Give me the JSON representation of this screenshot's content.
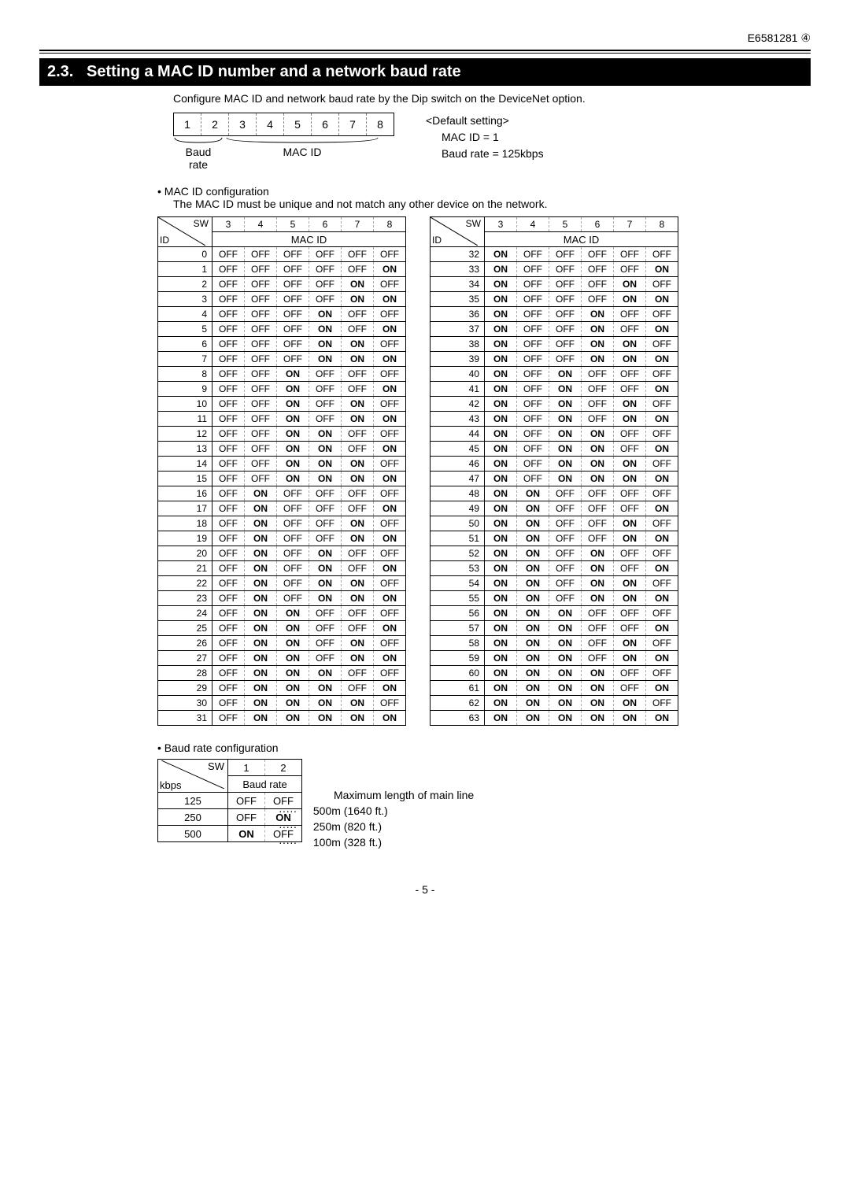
{
  "doc_code": "E6581281 ④",
  "section_number": "2.3.",
  "section_title": "Setting a MAC ID number and a network baud rate",
  "intro": "Configure MAC ID and network baud rate by the Dip switch on the DeviceNet option.",
  "dip": {
    "cells": [
      "1",
      "2",
      "3",
      "4",
      "5",
      "6",
      "7",
      "8"
    ],
    "baud_label": "Baud\nrate",
    "macid_label": "MAC ID"
  },
  "default_block": {
    "title": "<Default setting>",
    "line1": "MAC ID = 1",
    "line2": "Baud rate = 125kbps"
  },
  "macid_heading": "• MAC ID configuration",
  "macid_note": "The MAC ID must be unique and not match any other device on the network.",
  "sw_label": "SW",
  "id_label": "ID",
  "macid_header": "MAC ID",
  "sw_cols": [
    "3",
    "4",
    "5",
    "6",
    "7",
    "8"
  ],
  "left_ids": [
    "0",
    "1",
    "2",
    "3",
    "4",
    "5",
    "6",
    "7",
    "8",
    "9",
    "10",
    "11",
    "12",
    "13",
    "14",
    "15",
    "16",
    "17",
    "18",
    "19",
    "20",
    "21",
    "22",
    "23",
    "24",
    "25",
    "26",
    "27",
    "28",
    "29",
    "30",
    "31"
  ],
  "right_ids": [
    "32",
    "33",
    "34",
    "35",
    "36",
    "37",
    "38",
    "39",
    "40",
    "41",
    "42",
    "43",
    "44",
    "45",
    "46",
    "47",
    "48",
    "49",
    "50",
    "51",
    "52",
    "53",
    "54",
    "55",
    "56",
    "57",
    "58",
    "59",
    "60",
    "61",
    "62",
    "63"
  ],
  "baud_heading": "• Baud rate configuration",
  "baud": {
    "kbps_label": "kbps",
    "sw_label": "SW",
    "baudrate_label": "Baud rate",
    "cols": [
      "1",
      "2"
    ],
    "rows": [
      {
        "k": "125",
        "c": [
          "OFF",
          "OFF"
        ],
        "len": "500m (1640 ft.)"
      },
      {
        "k": "250",
        "c": [
          "OFF",
          "ON"
        ],
        "len": "250m (820 ft.)"
      },
      {
        "k": "500",
        "c": [
          "ON",
          "OFF"
        ],
        "len": "100m (328 ft.)"
      }
    ],
    "max_label": "Maximum length of main line",
    "dots": "·····"
  },
  "page": "- 5 -"
}
